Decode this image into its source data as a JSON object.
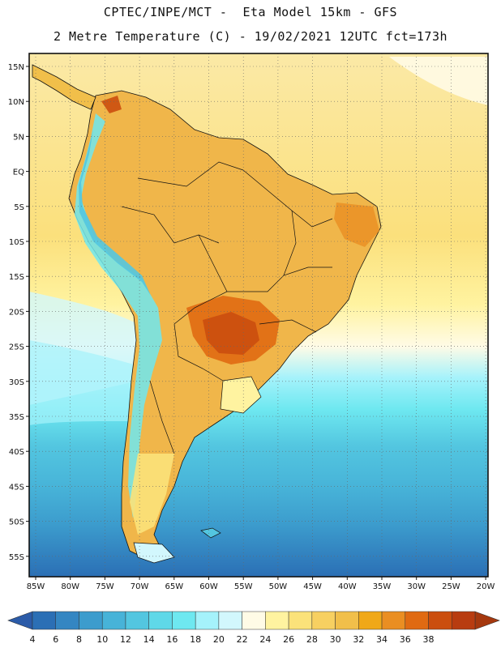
{
  "title_line1": "CPTEC/INPE/MCT -  Eta Model 15km - GFS",
  "title_line2": "2 Metre Temperature (C) - 19/02/2021 12UTC fct=173h",
  "map": {
    "lat_labels": [
      "15N",
      "10N",
      "5N",
      "EQ",
      "5S",
      "10S",
      "15S",
      "20S",
      "25S",
      "30S",
      "35S",
      "40S",
      "45S",
      "50S",
      "55S"
    ],
    "lon_labels": [
      "85W",
      "80W",
      "75W",
      "70W",
      "65W",
      "60W",
      "55W",
      "50W",
      "45W",
      "40W",
      "35W",
      "30W",
      "25W",
      "20W"
    ]
  },
  "colorbar": {
    "ticks": [
      "4",
      "6",
      "8",
      "10",
      "12",
      "14",
      "16",
      "18",
      "20",
      "22",
      "24",
      "26",
      "28",
      "30",
      "32",
      "34",
      "36",
      "38"
    ],
    "colors": [
      "#2b6fb5",
      "#3486c2",
      "#3c9ccd",
      "#47b3d8",
      "#53c6e0",
      "#5fd8e8",
      "#6ee8f0",
      "#a5f2fb",
      "#d2f7fd",
      "#fffbe6",
      "#fff3a0",
      "#fbe27a",
      "#f7d061",
      "#f1bf4a",
      "#f0a818",
      "#ea8e22",
      "#e06a12",
      "#cb4e0e",
      "#b83c10"
    ],
    "under_color": "#2b5ba8",
    "over_color": "#a5380e"
  }
}
